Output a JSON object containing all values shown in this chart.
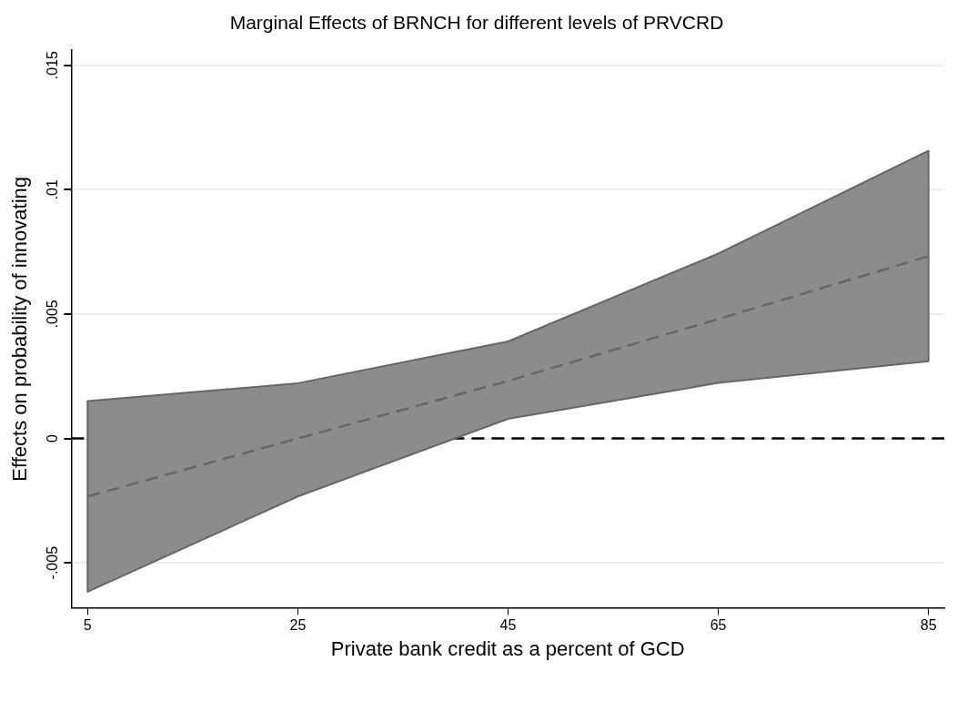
{
  "chart_data": {
    "type": "line",
    "title": "Marginal Effects of BRNCH for different levels of PRVCRD",
    "xlabel": "Private bank credit as a percent of GCD",
    "ylabel": "Effects on probability of innovating",
    "x": [
      5,
      25,
      45,
      65,
      85
    ],
    "series": [
      {
        "color": "#666666",
        "values": [
          -0.00233,
          0,
          0.00231,
          0.0048,
          0.00732
        ],
        "lower": [
          -0.00616,
          -0.00233,
          0.00079,
          0.00223,
          0.0031
        ],
        "upper": [
          0.0015,
          0.00222,
          0.0039,
          0.00743,
          0.01156
        ]
      }
    ],
    "xlim": [
      3.45,
      86.5
    ],
    "xticks": [
      5,
      25,
      45,
      65,
      85
    ],
    "ylim": [
      -0.0068,
      0.0156
    ],
    "yticks": [
      {
        "value": -0.005,
        "label": "-.005"
      },
      {
        "value": 0,
        "label": "0"
      },
      {
        "value": 0.005,
        "label": ".005"
      },
      {
        "value": 0.01,
        "label": ".01"
      },
      {
        "value": 0.015,
        "label": ".015"
      }
    ],
    "ref_lines": [
      {
        "axis": "y",
        "value": 0,
        "color": "#000000",
        "line_style": "dashed"
      }
    ],
    "grid": "y",
    "legend": false,
    "marker": "none",
    "line_style": "dashed"
  }
}
